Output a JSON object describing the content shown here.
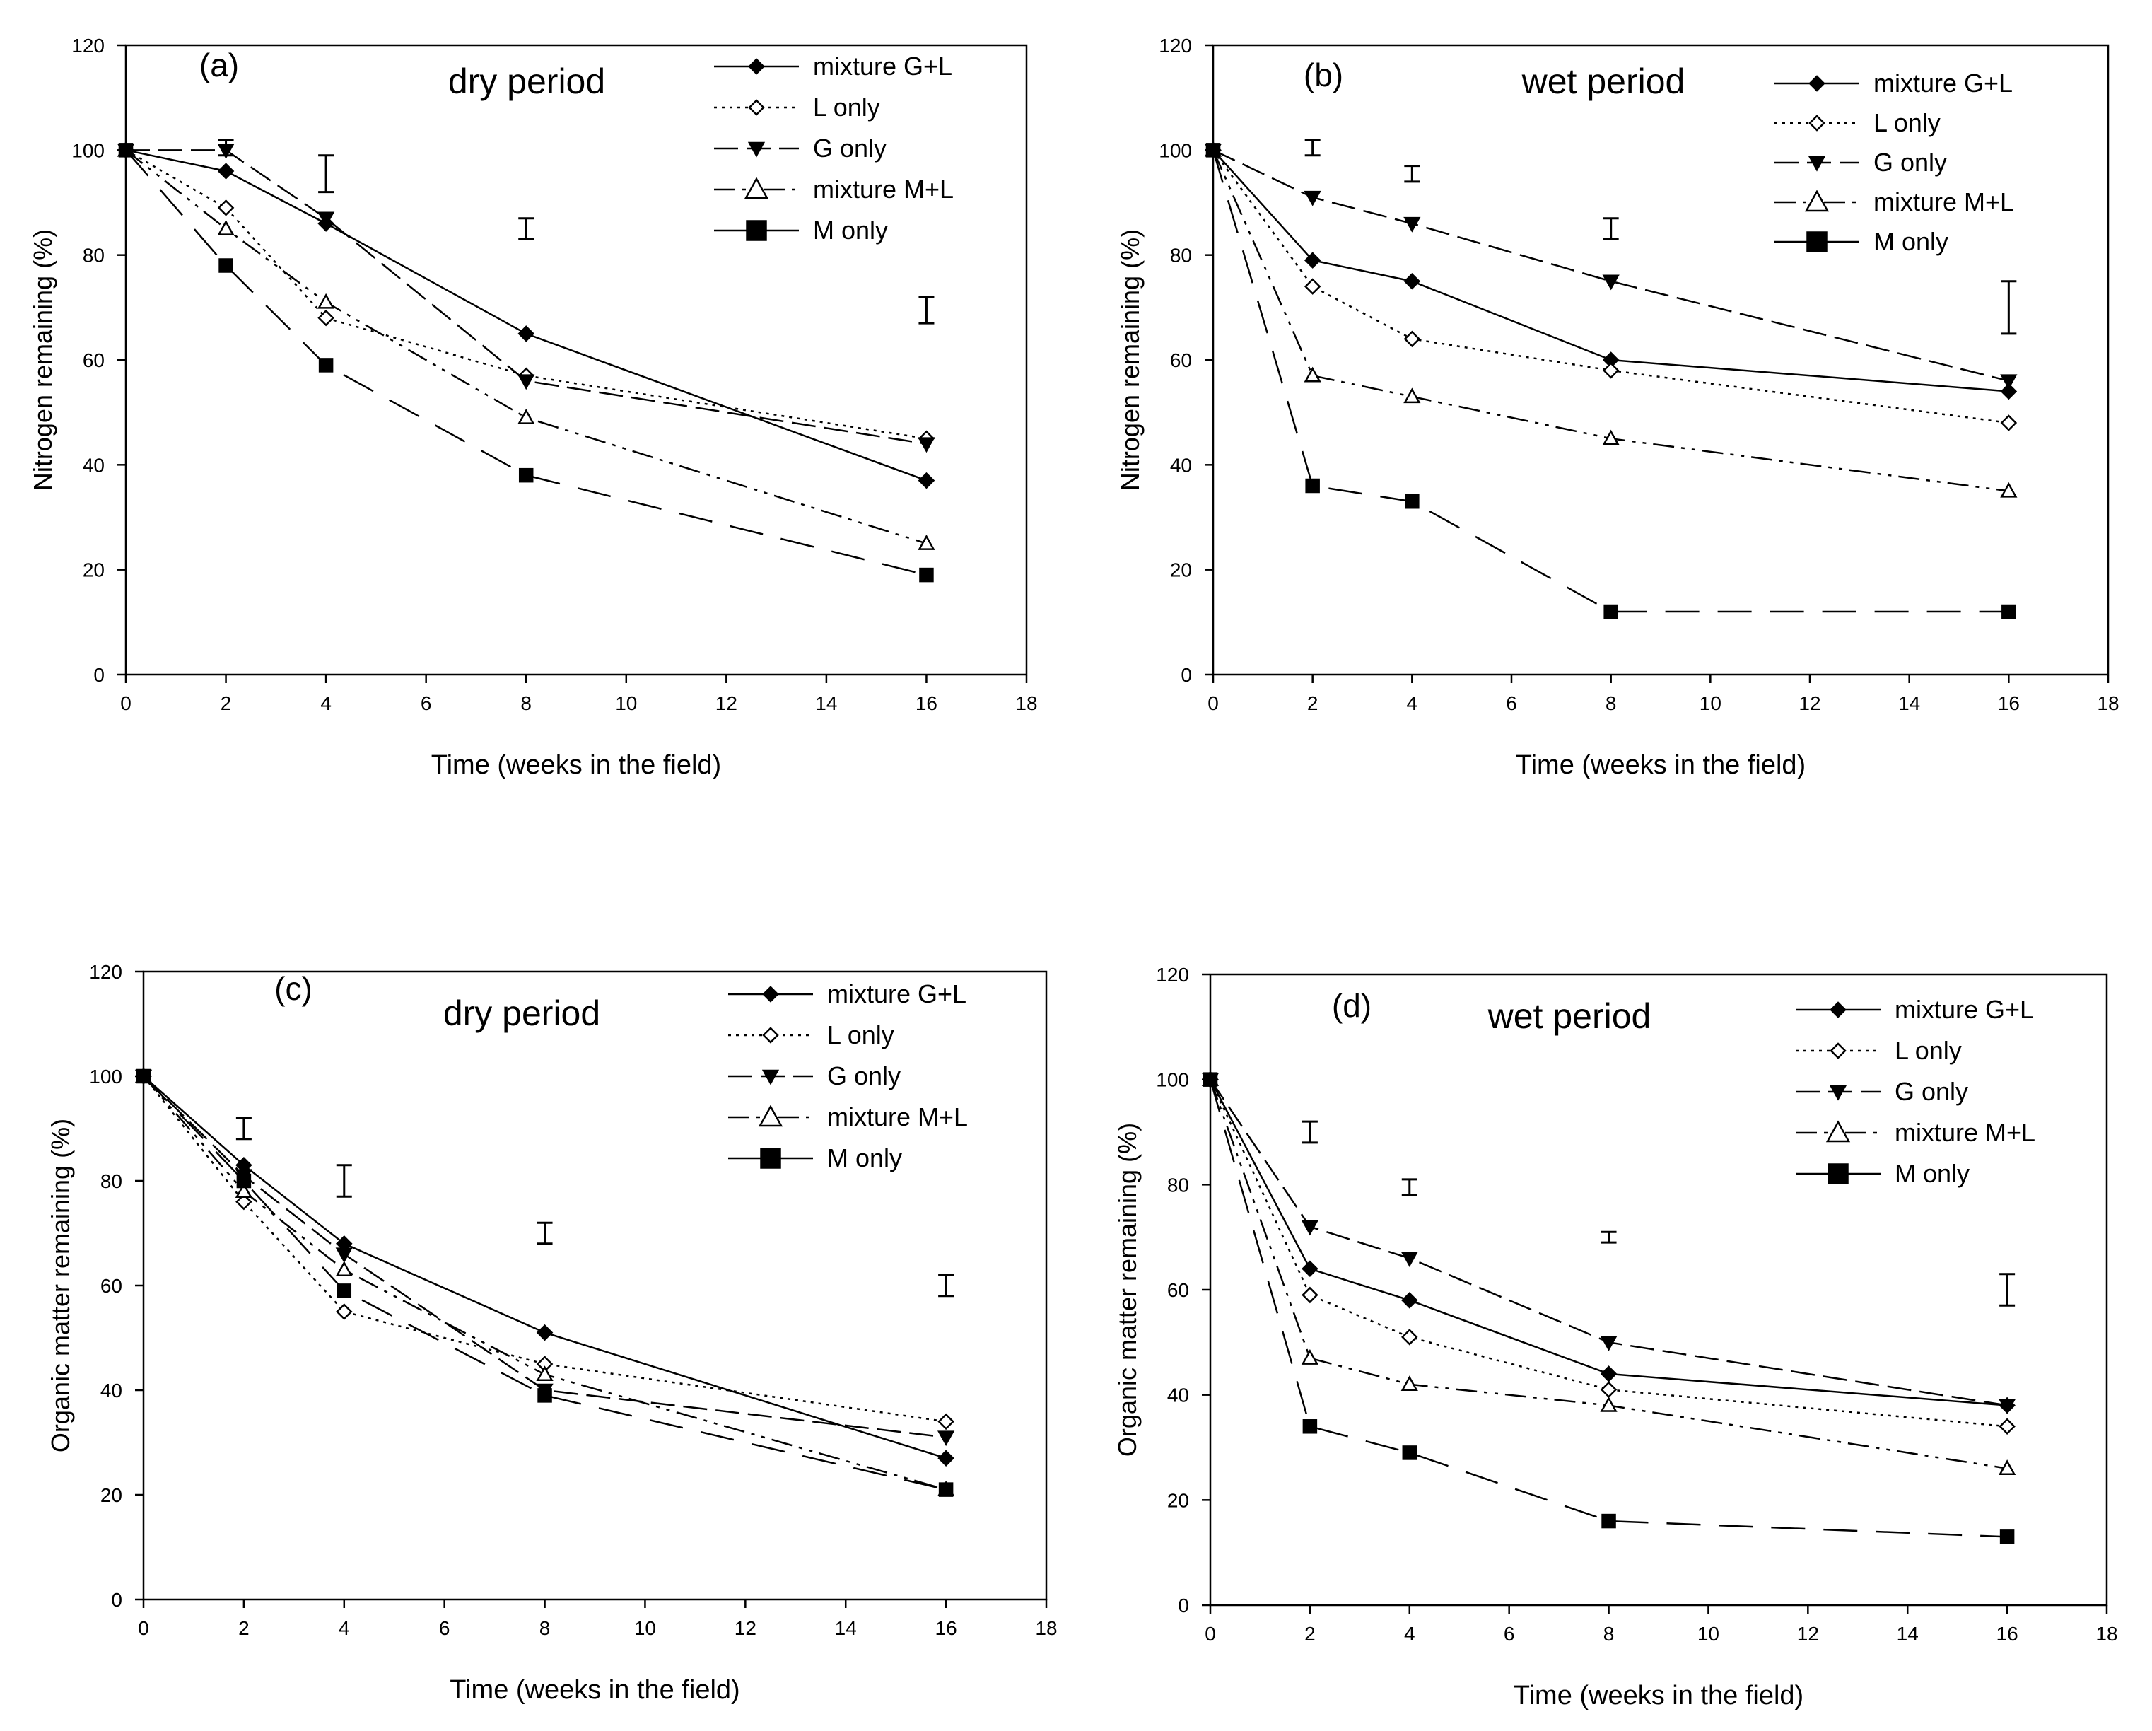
{
  "chart_data": [
    {
      "id": "a",
      "type": "line",
      "panel_label": "(a)",
      "title": "dry period",
      "xlabel": "Time (weeks in the field)",
      "ylabel": "Nitrogen remaining (%)",
      "xlim": [
        0,
        18
      ],
      "ylim": [
        0,
        120
      ],
      "xticks": [
        "0",
        "2",
        "4",
        "6",
        "8",
        "10",
        "12",
        "14",
        "16",
        "18"
      ],
      "yticks": [
        "0",
        "20",
        "40",
        "60",
        "80",
        "100",
        "120"
      ],
      "x": [
        0,
        2,
        4,
        8,
        16
      ],
      "series": [
        {
          "name": "mixture G+L",
          "values": [
            100,
            96,
            86,
            65,
            37
          ]
        },
        {
          "name": "L only",
          "values": [
            100,
            89,
            68,
            57,
            45
          ]
        },
        {
          "name": "G only",
          "values": [
            100,
            100,
            87,
            56,
            44
          ]
        },
        {
          "name": "mixture M+L",
          "values": [
            100,
            85,
            71,
            49,
            25
          ]
        },
        {
          "name": "M only",
          "values": [
            100,
            78,
            59,
            38,
            19
          ]
        }
      ],
      "error_bars": [
        {
          "x": 2,
          "low": 99,
          "high": 102
        },
        {
          "x": 4,
          "low": 92,
          "high": 99
        },
        {
          "x": 8,
          "low": 83,
          "high": 87
        },
        {
          "x": 16,
          "low": 67,
          "high": 72
        }
      ]
    },
    {
      "id": "b",
      "type": "line",
      "panel_label": "(b)",
      "title": "wet period",
      "xlabel": "Time (weeks in the field)",
      "ylabel": "Nitrogen remaining (%)",
      "xlim": [
        0,
        18
      ],
      "ylim": [
        0,
        120
      ],
      "xticks": [
        "0",
        "2",
        "4",
        "6",
        "8",
        "10",
        "12",
        "14",
        "16",
        "18"
      ],
      "yticks": [
        "0",
        "20",
        "40",
        "60",
        "80",
        "100",
        "120"
      ],
      "x": [
        0,
        2,
        4,
        8,
        16
      ],
      "series": [
        {
          "name": "mixture G+L",
          "values": [
            100,
            79,
            75,
            60,
            54
          ]
        },
        {
          "name": "L only",
          "values": [
            100,
            74,
            64,
            58,
            48
          ]
        },
        {
          "name": "G only",
          "values": [
            100,
            91,
            86,
            75,
            56
          ]
        },
        {
          "name": "mixture M+L",
          "values": [
            100,
            57,
            53,
            45,
            35
          ]
        },
        {
          "name": "M only",
          "values": [
            100,
            36,
            33,
            12,
            12
          ]
        }
      ],
      "error_bars": [
        {
          "x": 2,
          "low": 99,
          "high": 102
        },
        {
          "x": 4,
          "low": 94,
          "high": 97
        },
        {
          "x": 8,
          "low": 83,
          "high": 87
        },
        {
          "x": 16,
          "low": 65,
          "high": 75
        }
      ]
    },
    {
      "id": "c",
      "type": "line",
      "panel_label": "(c)",
      "title": "dry period",
      "xlabel": "Time (weeks in the field)",
      "ylabel": "Organic matter remaining (%)",
      "xlim": [
        0,
        18
      ],
      "ylim": [
        0,
        120
      ],
      "xticks": [
        "0",
        "2",
        "4",
        "6",
        "8",
        "10",
        "12",
        "14",
        "16",
        "18"
      ],
      "yticks": [
        "0",
        "20",
        "40",
        "60",
        "80",
        "100",
        "120"
      ],
      "x": [
        0,
        2,
        4,
        8,
        16
      ],
      "series": [
        {
          "name": "mixture G+L",
          "values": [
            100,
            83,
            68,
            51,
            27
          ]
        },
        {
          "name": "L only",
          "values": [
            100,
            76,
            55,
            45,
            34
          ]
        },
        {
          "name": "G only",
          "values": [
            100,
            81,
            66,
            40,
            31
          ]
        },
        {
          "name": "mixture M+L",
          "values": [
            100,
            78,
            63,
            43,
            21
          ]
        },
        {
          "name": "M only",
          "values": [
            100,
            80,
            59,
            39,
            21
          ]
        }
      ],
      "error_bars": [
        {
          "x": 2,
          "low": 88,
          "high": 92
        },
        {
          "x": 4,
          "low": 77,
          "high": 83
        },
        {
          "x": 8,
          "low": 68,
          "high": 72
        },
        {
          "x": 16,
          "low": 58,
          "high": 62
        }
      ]
    },
    {
      "id": "d",
      "type": "line",
      "panel_label": "(d)",
      "title": "wet period",
      "xlabel": "Time (weeks in the field)",
      "ylabel": "Organic matter remaining (%)",
      "xlim": [
        0,
        18
      ],
      "ylim": [
        0,
        120
      ],
      "xticks": [
        "0",
        "2",
        "4",
        "6",
        "8",
        "10",
        "12",
        "14",
        "16",
        "18"
      ],
      "yticks": [
        "0",
        "20",
        "40",
        "60",
        "80",
        "100",
        "120"
      ],
      "x": [
        0,
        2,
        4,
        8,
        16
      ],
      "series": [
        {
          "name": "mixture G+L",
          "values": [
            100,
            64,
            58,
            44,
            38
          ]
        },
        {
          "name": "L only",
          "values": [
            100,
            59,
            51,
            41,
            34
          ]
        },
        {
          "name": "G only",
          "values": [
            100,
            72,
            66,
            50,
            38
          ]
        },
        {
          "name": "mixture M+L",
          "values": [
            100,
            47,
            42,
            38,
            26
          ]
        },
        {
          "name": "M only",
          "values": [
            100,
            34,
            29,
            16,
            13
          ]
        }
      ],
      "error_bars": [
        {
          "x": 2,
          "low": 88,
          "high": 92
        },
        {
          "x": 4,
          "low": 78,
          "high": 81
        },
        {
          "x": 8,
          "low": 69,
          "high": 71
        },
        {
          "x": 16,
          "low": 57,
          "high": 63
        }
      ]
    }
  ]
}
